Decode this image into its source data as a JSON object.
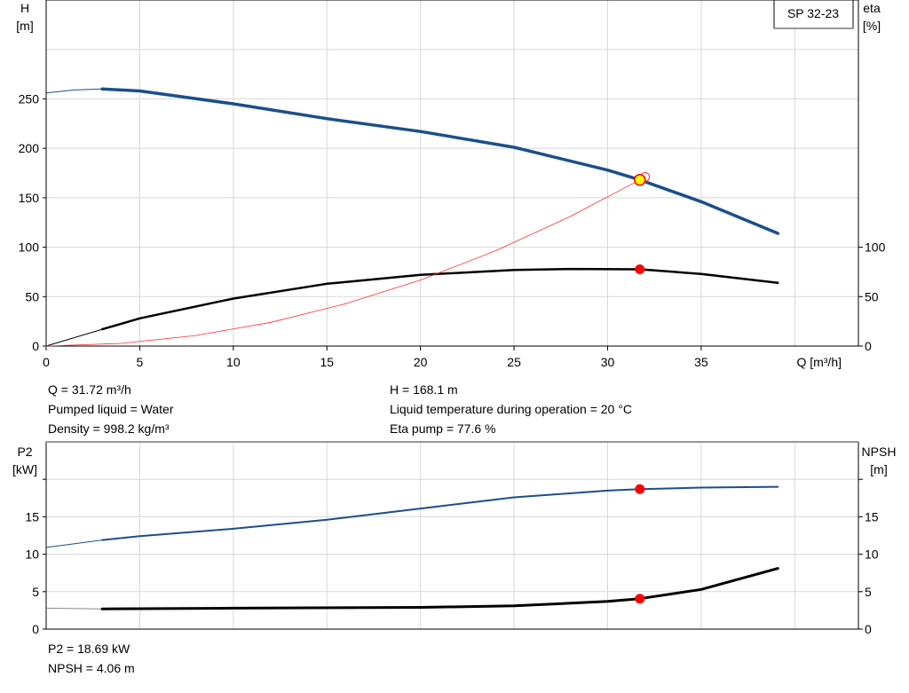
{
  "colors": {
    "head": "#1a4f8a",
    "eta": "#000000",
    "system": "#ff3030",
    "p2": "#1a4f8a",
    "npsh": "#000000",
    "dot": "#ff0000",
    "duty": "#ffff00",
    "grid": "#d8d8d8"
  },
  "chart_data": [
    {
      "type": "line",
      "title": "SP 32-23",
      "xlabel": "Q [m³/h]",
      "xlim": [
        0,
        43.4
      ],
      "xticks": [
        0,
        5,
        10,
        15,
        20,
        25,
        30,
        35
      ],
      "ylabel_left": "H\n[m]",
      "ylabel_left_lines": [
        "H",
        "[m]"
      ],
      "ylim": [
        0,
        350
      ],
      "yticks_left": [
        0,
        50,
        100,
        150,
        200,
        250
      ],
      "ylabel_right_lines": [
        "eta",
        "[%]"
      ],
      "yticks_right": [
        0,
        50,
        100
      ],
      "grid": true,
      "series": [
        {
          "id": "head",
          "axis": "left",
          "x": [
            0,
            1.5,
            3,
            5,
            10,
            15,
            20,
            25,
            30,
            31.72,
            35,
            39.1
          ],
          "y": [
            256,
            259,
            260,
            258,
            245,
            230,
            217,
            201,
            178,
            168.1,
            146,
            114
          ],
          "thin_until": 3
        },
        {
          "id": "eta",
          "axis": "right",
          "x": [
            0,
            3,
            5,
            10,
            15,
            20,
            25,
            28,
            31.72,
            35,
            39.1
          ],
          "y": [
            0,
            17,
            28,
            48,
            63,
            72,
            77,
            78,
            77.6,
            73,
            64
          ],
          "thin_until": 3
        },
        {
          "id": "system",
          "axis": "left",
          "x": [
            0,
            4,
            8,
            12,
            16,
            20,
            24,
            28,
            31.72,
            32
          ],
          "y": [
            0,
            2.7,
            10.7,
            24,
            42.8,
            66.8,
            96.2,
            131,
            168.1,
            171
          ],
          "thin_until": 0
        }
      ],
      "markers": [
        {
          "series": "head",
          "x": 31.72,
          "y": 168.1,
          "style": "duty"
        },
        {
          "series": "eta",
          "x": 31.72,
          "y": 77.6,
          "style": "dot"
        }
      ]
    },
    {
      "type": "line",
      "xlim": [
        0,
        43.4
      ],
      "ylabel_left_lines": [
        "P2",
        "[kW]"
      ],
      "ylabel_right_lines": [
        "NPSH",
        "[m]"
      ],
      "ylim": [
        0,
        25
      ],
      "yticks_left": [
        0,
        5,
        10,
        15
      ],
      "yticks_right": [
        0,
        5,
        10,
        15
      ],
      "grid": true,
      "series": [
        {
          "id": "p2",
          "axis": "left",
          "x": [
            0,
            3,
            5,
            10,
            15,
            20,
            25,
            30,
            31.72,
            35,
            39.1
          ],
          "y": [
            10.9,
            11.9,
            12.4,
            13.4,
            14.6,
            16.1,
            17.6,
            18.5,
            18.69,
            18.9,
            19.0
          ],
          "thin_until": 3
        },
        {
          "id": "npsh",
          "axis": "right",
          "x": [
            0,
            3,
            10,
            20,
            25,
            30,
            31.72,
            35,
            39.1
          ],
          "y": [
            2.8,
            2.7,
            2.8,
            2.9,
            3.1,
            3.7,
            4.06,
            5.3,
            8.1
          ],
          "thin_until": 3
        }
      ],
      "markers": [
        {
          "series": "p2",
          "x": 31.72,
          "y": 18.69,
          "style": "dot"
        },
        {
          "series": "npsh",
          "x": 31.72,
          "y": 4.06,
          "style": "dot"
        }
      ]
    }
  ],
  "info1": {
    "q": "Q = 31.72 m³/h",
    "liquid": "Pumped liquid = Water",
    "density": "Density = 998.2 kg/m³",
    "h": "H = 168.1 m",
    "temp": "Liquid temperature during operation = 20 °C",
    "eta": "Eta pump = 77.6 %"
  },
  "info2": {
    "p2": "P2 = 18.69 kW",
    "npsh": "NPSH = 4.06 m"
  }
}
